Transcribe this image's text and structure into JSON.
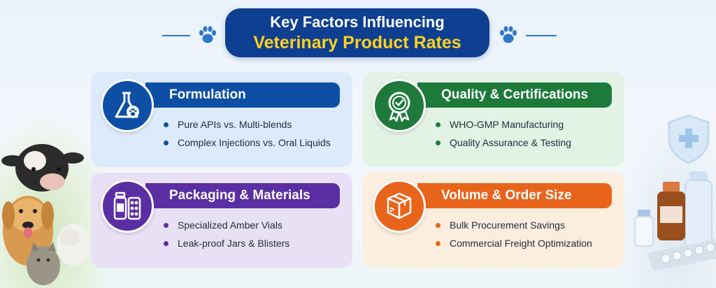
{
  "header": {
    "title_line1": "Key Factors Influencing",
    "title_line2": "Veterinary Product Rates"
  },
  "cards": [
    {
      "title": "Formulation",
      "icon": "flask-paw-icon",
      "color": "#0e4fa6",
      "bullets": [
        "Pure APIs vs. Multi-blends",
        "Complex Injections vs. Oral Liquids"
      ]
    },
    {
      "title": "Quality & Certifications",
      "icon": "certification-badge-icon",
      "color": "#1e7a3a",
      "bullets": [
        "WHO-GMP Manufacturing",
        "Quality Assurance & Testing"
      ]
    },
    {
      "title": "Packaging & Materials",
      "icon": "vial-blister-icon",
      "color": "#5b2fa4",
      "bullets": [
        "Specialized Amber Vials",
        "Leak-proof Jars & Blisters"
      ]
    },
    {
      "title": "Volume & Order Size",
      "icon": "boxes-icon",
      "color": "#e8641b",
      "bullets": [
        "Bulk Procurement Savings",
        "Commercial Freight Optimization"
      ]
    }
  ],
  "colors": {
    "title_bg": "#0e3f90",
    "title_accent": "#ffd21f",
    "paw": "#2f78c8"
  }
}
